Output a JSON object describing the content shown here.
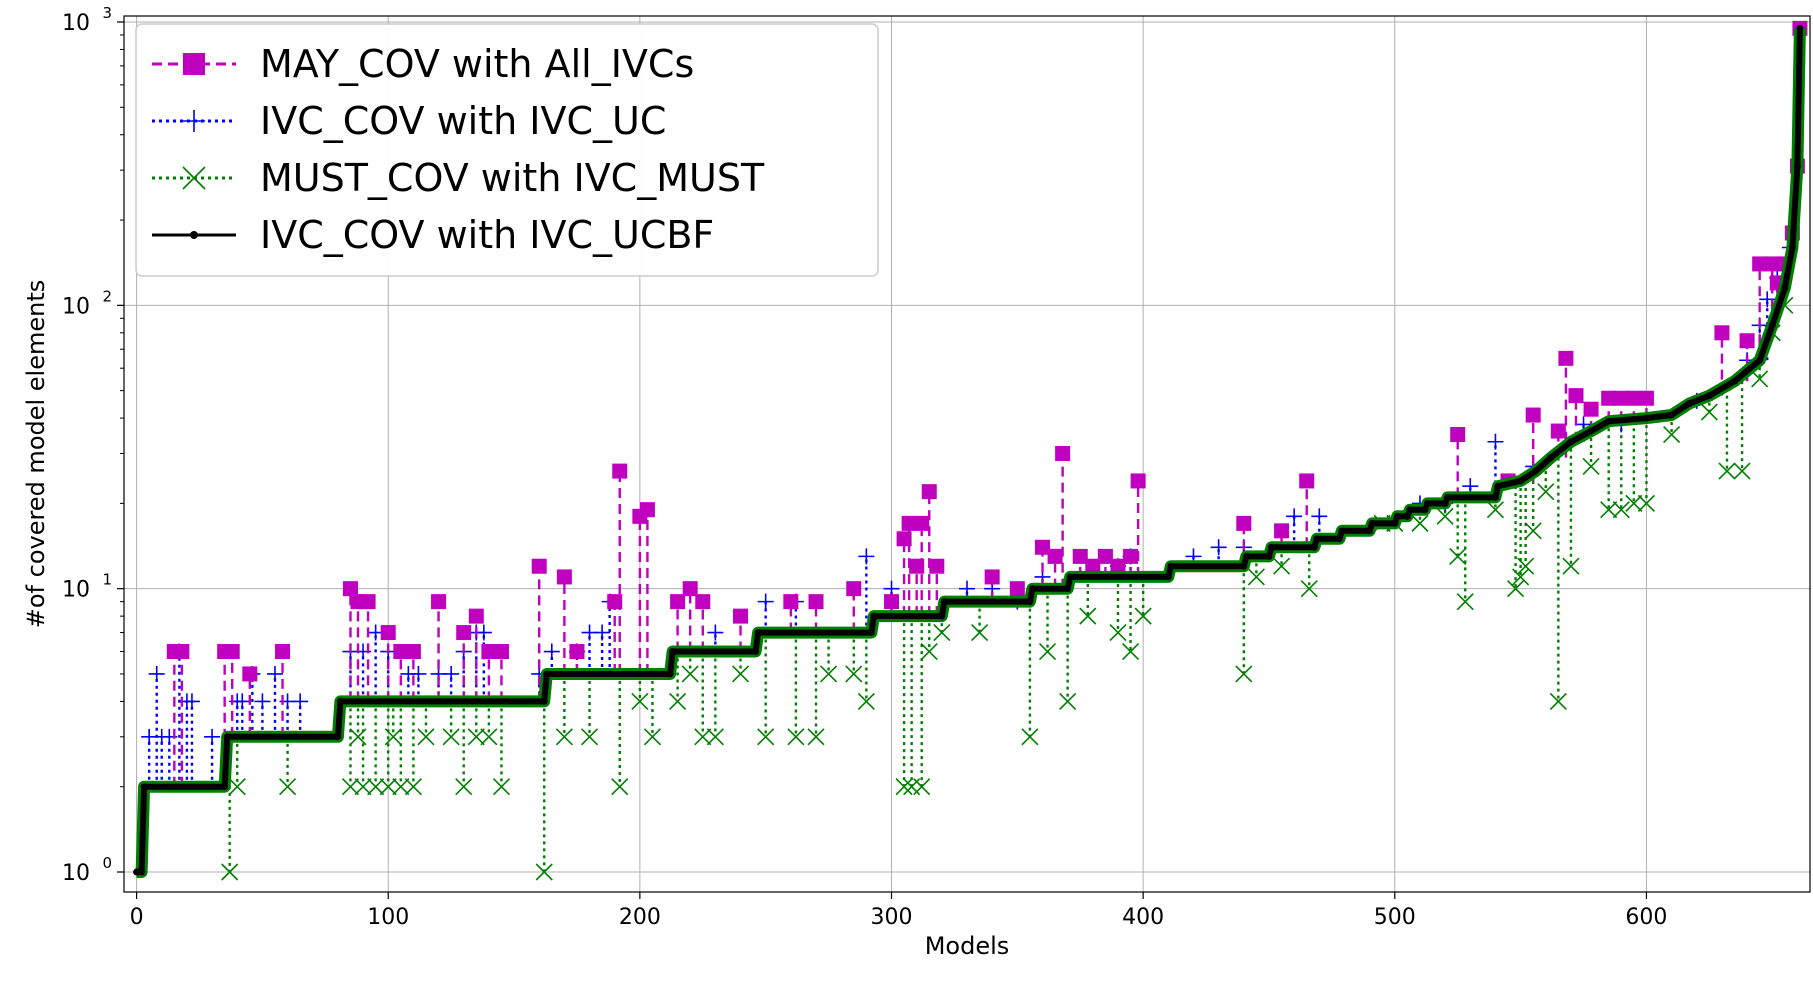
{
  "chart_data": {
    "type": "line",
    "title": "",
    "xlabel": "Models",
    "ylabel": "#of covered model elements",
    "xlim": [
      -5,
      665
    ],
    "ylim": [
      0.85,
      1050
    ],
    "yscale": "log",
    "x_ticks": [
      0,
      100,
      200,
      300,
      400,
      500,
      600
    ],
    "y_ticks": [
      1,
      10,
      100,
      1000
    ],
    "y_tick_labels": [
      {
        "base": "10",
        "exp": "0"
      },
      {
        "base": "10",
        "exp": "1"
      },
      {
        "base": "10",
        "exp": "2"
      },
      {
        "base": "10",
        "exp": "3"
      }
    ],
    "grid": true,
    "legend_position": "top-left",
    "legend": [
      {
        "label": "MAY_COV with All_IVCs",
        "color": "#bf00bf",
        "marker": "square",
        "dash": "dashed"
      },
      {
        "label": "IVC_COV with IVC_UC",
        "color": "#0000ff",
        "marker": "plus",
        "dash": "dotted"
      },
      {
        "label": "MUST_COV with IVC_MUST",
        "color": "#008000",
        "marker": "x",
        "dash": "dotted"
      },
      {
        "label": "IVC_COV with IVC_UCBF",
        "color": "#000000",
        "marker": "dot",
        "dash": "solid"
      }
    ],
    "series": [
      {
        "name": "IVC_COV with IVC_UCBF",
        "points": [
          [
            0,
            1
          ],
          [
            2,
            1
          ],
          [
            3,
            2
          ],
          [
            35,
            2
          ],
          [
            36,
            3
          ],
          [
            80,
            3
          ],
          [
            81,
            4
          ],
          [
            162,
            4
          ],
          [
            163,
            5
          ],
          [
            212,
            5
          ],
          [
            213,
            6
          ],
          [
            246,
            6
          ],
          [
            247,
            7
          ],
          [
            292,
            7
          ],
          [
            293,
            8
          ],
          [
            320,
            8
          ],
          [
            321,
            9
          ],
          [
            355,
            9
          ],
          [
            356,
            10
          ],
          [
            370,
            10
          ],
          [
            371,
            11
          ],
          [
            410,
            11
          ],
          [
            411,
            12
          ],
          [
            440,
            12
          ],
          [
            441,
            13
          ],
          [
            450,
            13
          ],
          [
            451,
            14
          ],
          [
            468,
            14
          ],
          [
            469,
            15
          ],
          [
            478,
            15
          ],
          [
            479,
            16
          ],
          [
            490,
            16
          ],
          [
            491,
            17
          ],
          [
            500,
            17
          ],
          [
            501,
            18
          ],
          [
            505,
            18
          ],
          [
            506,
            19
          ],
          [
            512,
            19
          ],
          [
            513,
            20
          ],
          [
            520,
            20
          ],
          [
            521,
            21
          ],
          [
            540,
            21
          ],
          [
            541,
            23
          ],
          [
            550,
            24
          ],
          [
            556,
            26
          ],
          [
            562,
            29
          ],
          [
            570,
            33
          ],
          [
            578,
            36
          ],
          [
            585,
            39
          ],
          [
            600,
            40
          ],
          [
            610,
            41
          ],
          [
            617,
            45
          ],
          [
            625,
            48
          ],
          [
            635,
            54
          ],
          [
            645,
            64
          ],
          [
            650,
            85
          ],
          [
            655,
            115
          ],
          [
            658,
            160
          ],
          [
            660,
            310
          ],
          [
            661,
            950
          ]
        ]
      },
      {
        "name": "MAY_COV with All_IVCs",
        "spikes": [
          [
            15,
            6
          ],
          [
            18,
            6
          ],
          [
            35,
            6
          ],
          [
            38,
            6
          ],
          [
            45,
            5
          ],
          [
            58,
            6
          ],
          [
            85,
            10
          ],
          [
            88,
            9
          ],
          [
            92,
            9
          ],
          [
            100,
            7
          ],
          [
            105,
            6
          ],
          [
            110,
            6
          ],
          [
            120,
            9
          ],
          [
            130,
            7
          ],
          [
            135,
            8
          ],
          [
            140,
            6
          ],
          [
            145,
            6
          ],
          [
            160,
            12
          ],
          [
            170,
            11
          ],
          [
            175,
            6
          ],
          [
            190,
            9
          ],
          [
            192,
            26
          ],
          [
            200,
            18
          ],
          [
            203,
            19
          ],
          [
            215,
            9
          ],
          [
            220,
            10
          ],
          [
            225,
            9
          ],
          [
            240,
            8
          ],
          [
            260,
            9
          ],
          [
            270,
            9
          ],
          [
            285,
            10
          ],
          [
            300,
            9
          ],
          [
            305,
            15
          ],
          [
            307,
            17
          ],
          [
            310,
            12
          ],
          [
            312,
            17
          ],
          [
            315,
            22
          ],
          [
            318,
            12
          ],
          [
            340,
            11
          ],
          [
            350,
            10
          ],
          [
            360,
            14
          ],
          [
            365,
            13
          ],
          [
            368,
            30
          ],
          [
            375,
            13
          ],
          [
            380,
            12
          ],
          [
            385,
            13
          ],
          [
            390,
            12
          ],
          [
            395,
            13
          ],
          [
            398,
            24
          ],
          [
            440,
            17
          ],
          [
            455,
            16
          ],
          [
            465,
            24
          ],
          [
            525,
            35
          ],
          [
            545,
            24
          ],
          [
            555,
            41
          ],
          [
            565,
            36
          ],
          [
            568,
            65
          ],
          [
            572,
            48
          ],
          [
            578,
            43
          ],
          [
            585,
            47
          ],
          [
            590,
            47
          ],
          [
            595,
            47
          ],
          [
            600,
            47
          ],
          [
            630,
            80
          ],
          [
            640,
            75
          ],
          [
            645,
            140
          ],
          [
            650,
            140
          ],
          [
            652,
            120
          ],
          [
            655,
            140
          ],
          [
            658,
            180
          ],
          [
            660,
            310
          ],
          [
            661,
            950
          ]
        ]
      },
      {
        "name": "IVC_COV with IVC_UC",
        "spikes": [
          [
            5,
            3
          ],
          [
            8,
            5
          ],
          [
            10,
            3
          ],
          [
            13,
            3
          ],
          [
            17,
            6
          ],
          [
            20,
            4
          ],
          [
            22,
            4
          ],
          [
            30,
            3
          ],
          [
            40,
            4
          ],
          [
            42,
            4
          ],
          [
            46,
            5
          ],
          [
            50,
            4
          ],
          [
            55,
            5
          ],
          [
            60,
            4
          ],
          [
            65,
            4
          ],
          [
            85,
            6
          ],
          [
            90,
            6
          ],
          [
            95,
            7
          ],
          [
            100,
            6
          ],
          [
            108,
            5
          ],
          [
            112,
            5
          ],
          [
            120,
            5
          ],
          [
            125,
            5
          ],
          [
            130,
            6
          ],
          [
            135,
            7
          ],
          [
            138,
            7
          ],
          [
            160,
            5
          ],
          [
            165,
            6
          ],
          [
            175,
            6
          ],
          [
            180,
            7
          ],
          [
            185,
            7
          ],
          [
            188,
            9
          ],
          [
            230,
            7
          ],
          [
            250,
            9
          ],
          [
            262,
            9
          ],
          [
            290,
            13
          ],
          [
            300,
            10
          ],
          [
            330,
            10
          ],
          [
            340,
            10
          ],
          [
            350,
            9
          ],
          [
            360,
            11
          ],
          [
            390,
            12
          ],
          [
            395,
            13
          ],
          [
            420,
            13
          ],
          [
            430,
            14
          ],
          [
            440,
            14
          ],
          [
            460,
            18
          ],
          [
            470,
            18
          ],
          [
            510,
            20
          ],
          [
            520,
            20
          ],
          [
            530,
            23
          ],
          [
            540,
            33
          ],
          [
            555,
            27
          ],
          [
            575,
            38
          ],
          [
            590,
            38
          ],
          [
            620,
            46
          ],
          [
            640,
            64
          ],
          [
            645,
            85
          ],
          [
            648,
            105
          ],
          [
            652,
            125
          ],
          [
            657,
            160
          ]
        ]
      },
      {
        "name": "MUST_COV with IVC_MUST",
        "spikes": [
          [
            37,
            1
          ],
          [
            40,
            2
          ],
          [
            60,
            2
          ],
          [
            85,
            2
          ],
          [
            88,
            3
          ],
          [
            90,
            2
          ],
          [
            95,
            2
          ],
          [
            100,
            2
          ],
          [
            102,
            3
          ],
          [
            105,
            2
          ],
          [
            110,
            2
          ],
          [
            115,
            3
          ],
          [
            125,
            3
          ],
          [
            130,
            2
          ],
          [
            135,
            3
          ],
          [
            140,
            3
          ],
          [
            145,
            2
          ],
          [
            162,
            1
          ],
          [
            170,
            3
          ],
          [
            180,
            3
          ],
          [
            192,
            2
          ],
          [
            200,
            4
          ],
          [
            205,
            3
          ],
          [
            215,
            4
          ],
          [
            220,
            5
          ],
          [
            225,
            3
          ],
          [
            230,
            3
          ],
          [
            240,
            5
          ],
          [
            250,
            3
          ],
          [
            262,
            3
          ],
          [
            270,
            3
          ],
          [
            275,
            5
          ],
          [
            285,
            5
          ],
          [
            290,
            4
          ],
          [
            305,
            2
          ],
          [
            308,
            2
          ],
          [
            312,
            2
          ],
          [
            315,
            6
          ],
          [
            320,
            7
          ],
          [
            335,
            7
          ],
          [
            355,
            3
          ],
          [
            362,
            6
          ],
          [
            370,
            4
          ],
          [
            378,
            8
          ],
          [
            390,
            7
          ],
          [
            395,
            6
          ],
          [
            400,
            8
          ],
          [
            440,
            5
          ],
          [
            445,
            11
          ],
          [
            455,
            12
          ],
          [
            466,
            10
          ],
          [
            495,
            17
          ],
          [
            500,
            17
          ],
          [
            510,
            17
          ],
          [
            520,
            18
          ],
          [
            525,
            13
          ],
          [
            528,
            9
          ],
          [
            540,
            19
          ],
          [
            548,
            10
          ],
          [
            550,
            11
          ],
          [
            552,
            12
          ],
          [
            555,
            16
          ],
          [
            560,
            22
          ],
          [
            565,
            4
          ],
          [
            570,
            12
          ],
          [
            578,
            27
          ],
          [
            585,
            19
          ],
          [
            590,
            19
          ],
          [
            595,
            20
          ],
          [
            600,
            20
          ],
          [
            610,
            35
          ],
          [
            625,
            42
          ],
          [
            632,
            26
          ],
          [
            638,
            26
          ],
          [
            645,
            55
          ],
          [
            650,
            80
          ],
          [
            655,
            100
          ]
        ]
      }
    ]
  }
}
